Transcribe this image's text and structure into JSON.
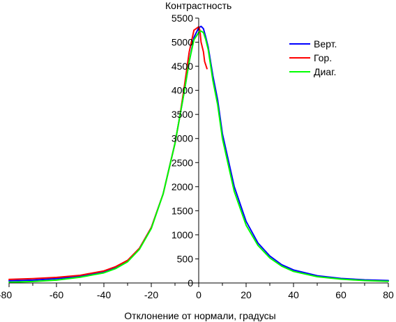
{
  "chart_data": {
    "type": "line",
    "title": "",
    "xlabel": "Отклонение от нормали, градусы",
    "ylabel": "Контрастность",
    "xlim": [
      -80,
      80
    ],
    "ylim": [
      0,
      5500
    ],
    "x_ticks": [
      -80,
      -60,
      -40,
      -20,
      0,
      20,
      40,
      60,
      80
    ],
    "x_tick_labels": [
      "-80",
      "-60",
      "-40",
      "-20",
      "0",
      "20",
      "40",
      "60",
      "80"
    ],
    "y_ticks": [
      0,
      500,
      1000,
      1500,
      2000,
      2500,
      3000,
      3500,
      4000,
      4500,
      5000,
      5500
    ],
    "y_tick_labels": [
      "0",
      "500",
      "1000",
      "1500",
      "2000",
      "2500",
      "3000",
      "3500",
      "4000",
      "4500",
      "5000",
      "5500"
    ],
    "grid": false,
    "legend_position": "top-right",
    "series": [
      {
        "name": "Верт.",
        "color": "#0000ff",
        "x": [
          -80,
          -70,
          -60,
          -50,
          -40,
          -35,
          -30,
          -25,
          -20,
          -15,
          -10,
          -8,
          -6,
          -4,
          -2,
          0,
          1,
          2,
          3,
          4,
          6,
          8,
          10,
          15,
          20,
          25,
          30,
          35,
          40,
          50,
          60,
          70,
          80
        ],
        "y": [
          45,
          60,
          90,
          140,
          230,
          320,
          460,
          720,
          1150,
          1850,
          2900,
          3450,
          4000,
          4600,
          5100,
          5300,
          5330,
          5280,
          5100,
          4900,
          4300,
          3800,
          3100,
          2000,
          1280,
          830,
          560,
          380,
          270,
          150,
          95,
          65,
          50
        ]
      },
      {
        "name": "Гор.",
        "color": "#ff0000",
        "x": [
          -80,
          -70,
          -60,
          -50,
          -40,
          -35,
          -30,
          -25,
          -20,
          -15,
          -10,
          -8,
          -6,
          -4,
          -2,
          0,
          0.5,
          1,
          2,
          2.5,
          3.5
        ],
        "y": [
          75,
          90,
          115,
          160,
          250,
          340,
          470,
          720,
          1150,
          1850,
          2900,
          3450,
          4100,
          4800,
          5250,
          5320,
          5250,
          5000,
          4800,
          4600,
          4450
        ]
      },
      {
        "name": "Диаг.",
        "color": "#00ff00",
        "x": [
          -80,
          -70,
          -60,
          -50,
          -40,
          -35,
          -30,
          -25,
          -20,
          -15,
          -10,
          -8,
          -6,
          -4,
          -2,
          0,
          1,
          2,
          3,
          4,
          6,
          8,
          10,
          15,
          20,
          25,
          30,
          35,
          40,
          50,
          60,
          70,
          80
        ],
        "y": [
          15,
          30,
          60,
          120,
          210,
          300,
          440,
          700,
          1130,
          1850,
          2900,
          3450,
          4000,
          4600,
          5050,
          5200,
          5230,
          5200,
          5050,
          4850,
          4200,
          3700,
          3000,
          1900,
          1200,
          780,
          520,
          350,
          240,
          130,
          80,
          50,
          35
        ]
      }
    ]
  }
}
